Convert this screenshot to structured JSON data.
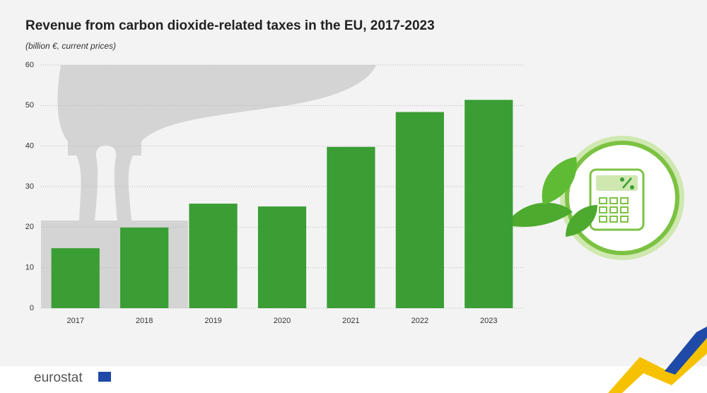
{
  "chart_data": {
    "type": "bar",
    "title": "Revenue from carbon dioxide-related taxes in the EU, 2017-2023",
    "subtitle": "(billion €, current prices)",
    "categories": [
      "2017",
      "2018",
      "2019",
      "2020",
      "2021",
      "2022",
      "2023"
    ],
    "values": [
      14.8,
      19.9,
      25.8,
      25.1,
      39.8,
      48.4,
      51.4
    ],
    "color": "#3a9e35",
    "ylim": [
      0,
      60
    ],
    "yticks": [
      0,
      10,
      20,
      30,
      40,
      50,
      60
    ],
    "grid": true
  },
  "footer": {
    "logo": "eurostat"
  }
}
